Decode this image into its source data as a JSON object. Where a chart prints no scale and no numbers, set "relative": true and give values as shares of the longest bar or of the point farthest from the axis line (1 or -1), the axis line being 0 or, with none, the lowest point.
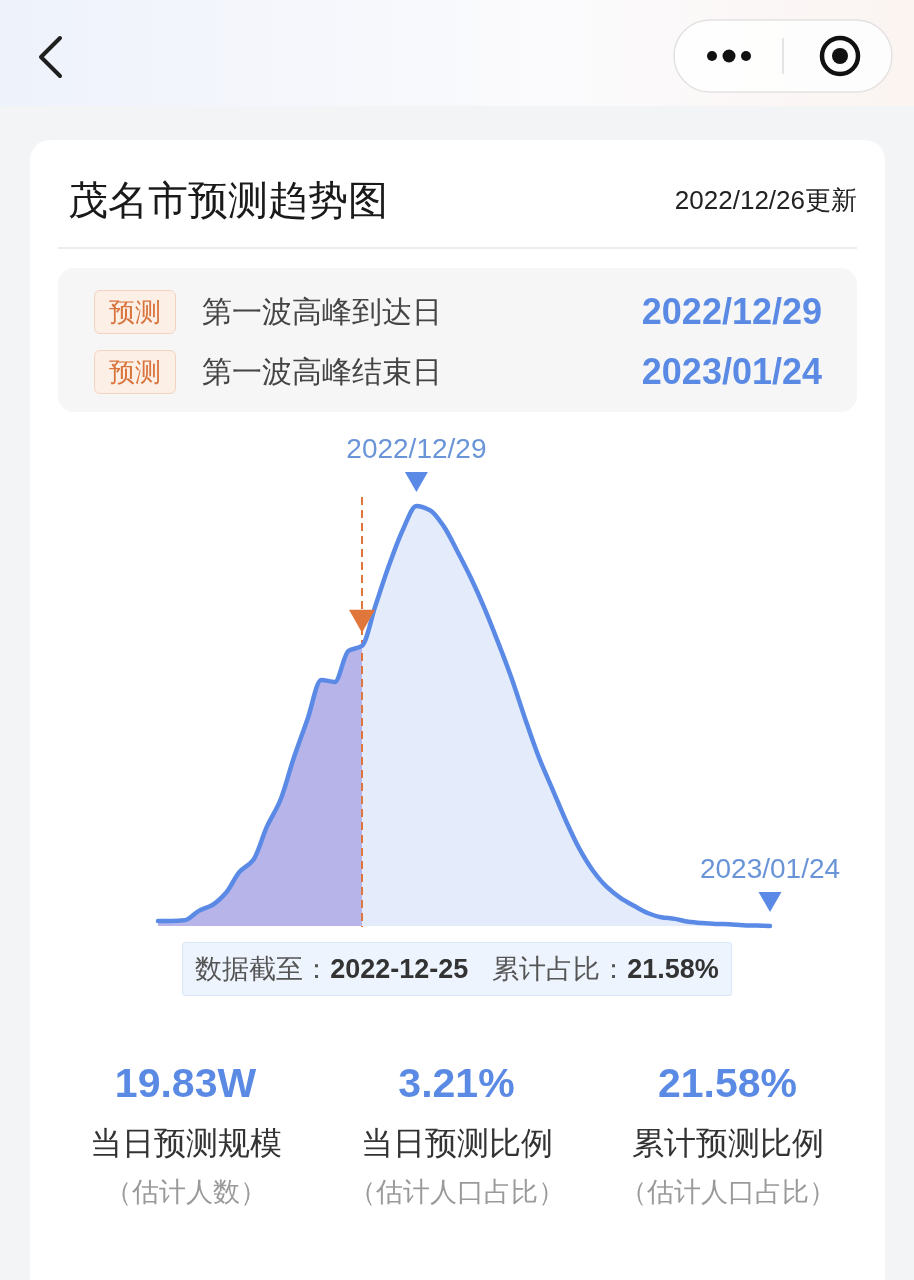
{
  "chart_data": {
    "type": "area",
    "title": "茂名市预测趋势图",
    "subtitle": "2022/12/26更新",
    "relative": true,
    "categories": [
      null,
      null,
      null,
      null,
      null,
      null,
      null,
      null,
      null,
      null,
      null,
      null,
      null,
      null,
      null,
      null,
      null,
      null,
      null,
      null,
      null,
      null,
      null,
      null,
      null,
      null,
      null,
      null,
      null,
      null,
      null,
      null,
      null,
      null,
      null,
      null,
      null,
      null,
      null,
      null,
      null,
      null,
      null,
      null,
      null,
      null
    ],
    "series": [
      {
        "color": "#b6b4e8",
        "values": [
          0.012,
          0.012,
          0.014,
          0.036,
          0.05,
          0.079,
          0.129,
          0.157,
          0.236,
          0.3,
          0.402,
          0.493,
          0.586,
          0.581,
          0.655,
          0.667,
          null,
          null,
          null,
          null,
          null,
          null,
          null,
          null,
          null,
          null,
          null,
          null,
          null,
          null,
          null,
          null,
          null,
          null,
          null,
          null,
          null,
          null,
          null,
          null,
          null,
          null,
          null,
          null,
          null,
          null
        ]
      },
      {
        "color": "#e4ecfb",
        "values": [
          null,
          null,
          null,
          null,
          null,
          null,
          null,
          null,
          null,
          null,
          null,
          null,
          null,
          null,
          null,
          0.667,
          0.764,
          0.86,
          0.943,
          1,
          0.99,
          0.952,
          0.893,
          0.829,
          0.757,
          0.676,
          0.59,
          0.493,
          0.402,
          0.326,
          0.25,
          0.183,
          0.131,
          0.093,
          0.067,
          0.048,
          0.031,
          0.021,
          0.017,
          0.01,
          0.007,
          0.005,
          0.004,
          0.002,
          0.001,
          0
        ]
      },
      {
        "type": "line",
        "color": "#5a8ae6",
        "values": [
          0.012,
          0.012,
          0.014,
          0.036,
          0.05,
          0.079,
          0.129,
          0.157,
          0.236,
          0.3,
          0.402,
          0.493,
          0.586,
          0.581,
          0.655,
          0.667,
          0.764,
          0.86,
          0.943,
          1,
          0.99,
          0.952,
          0.893,
          0.829,
          0.757,
          0.676,
          0.59,
          0.493,
          0.402,
          0.326,
          0.25,
          0.183,
          0.131,
          0.093,
          0.067,
          0.048,
          0.031,
          0.021,
          0.017,
          0.01,
          0.007,
          0.005,
          0.004,
          0.002,
          0.001,
          0
        ]
      }
    ],
    "annotations": [
      "预测",
      "第一波高峰到达日",
      "2022/12/29",
      "预测",
      "第一波高峰结束日",
      "2023/01/24",
      {
        "text": "2022/12/29",
        "y": 1
      },
      {
        "text": "2023/01/24",
        "y": 0
      },
      "数据截至：",
      "2022-12-25",
      "累计占比：",
      "21.58%",
      "19.83W",
      "当日预测规模",
      "（估计人数）",
      "3.21%",
      "当日预测比例",
      "（估计人口占比）",
      "21.58%",
      "累计预测比例",
      "（估计人口占比）"
    ]
  }
}
